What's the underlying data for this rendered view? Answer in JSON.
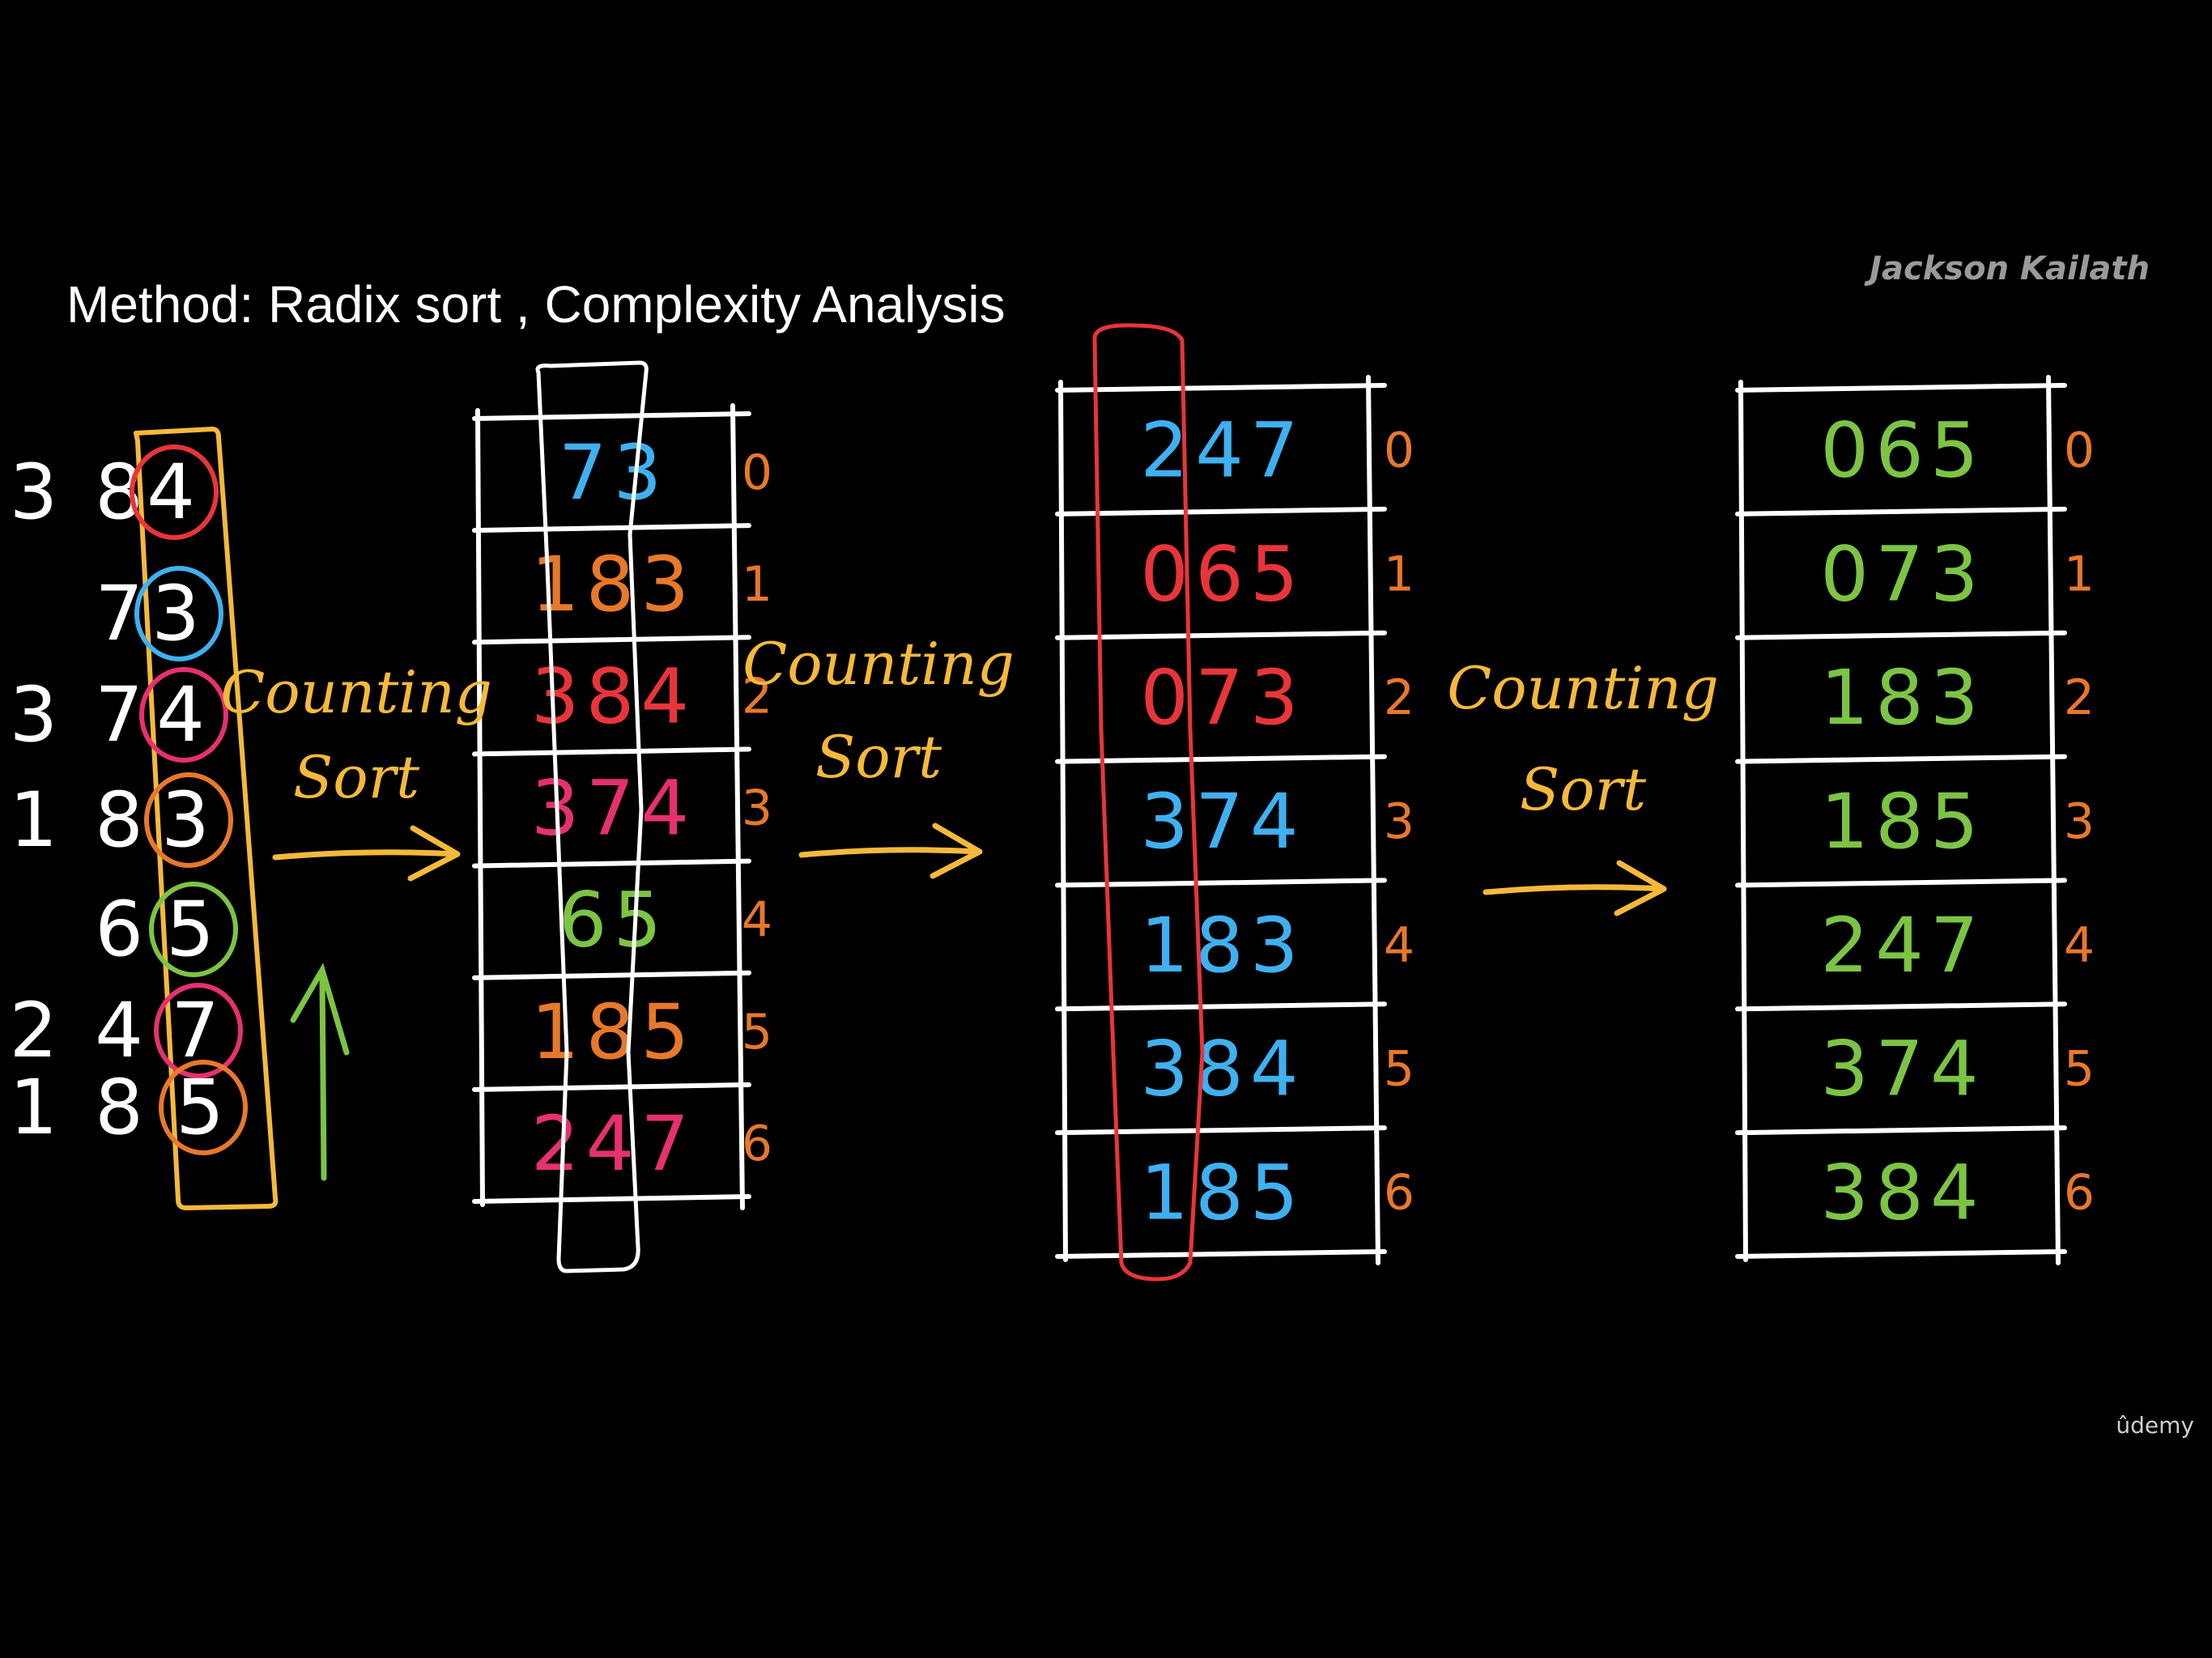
{
  "title": "Method: Radix sort , Complexity Analysis",
  "author": "Jackson Kailath",
  "brand": "ûdemy",
  "colors": {
    "background": "#000000",
    "white": "#ffffff",
    "yellow": "#f5b93a",
    "orange": "#e8782a",
    "red": "#e8353a",
    "magenta": "#e6306f",
    "blue": "#3fb0f0",
    "green": "#7cc444",
    "gray": "#9a9a9a"
  },
  "input": {
    "numbers": [
      {
        "lead": "3 8",
        "digit": "4",
        "circle": "red"
      },
      {
        "lead": "7",
        "digit": "3",
        "circle": "blue"
      },
      {
        "lead": "3 7",
        "digit": "4",
        "circle": "magenta"
      },
      {
        "lead": "1 8",
        "digit": "3",
        "circle": "orange"
      },
      {
        "lead": "6",
        "digit": "5",
        "circle": "green"
      },
      {
        "lead": "2 4",
        "digit": "7",
        "circle": "magenta"
      },
      {
        "lead": "1 8",
        "digit": "5",
        "circle": "orange"
      }
    ]
  },
  "arrows": [
    {
      "label_1": "Counting",
      "label_2": "Sort"
    },
    {
      "label_1": "Counting",
      "label_2": "Sort"
    },
    {
      "label_1": "Counting",
      "label_2": "Sort"
    }
  ],
  "passes": [
    {
      "rows": [
        {
          "value": "73",
          "color": "blue"
        },
        {
          "value": "183",
          "color": "orange"
        },
        {
          "value": "384",
          "color": "red"
        },
        {
          "value": "374",
          "color": "magenta"
        },
        {
          "value": "65",
          "color": "green"
        },
        {
          "value": "185",
          "color": "orange"
        },
        {
          "value": "247",
          "color": "magenta"
        }
      ]
    },
    {
      "rows": [
        {
          "value": "247",
          "color": "blue"
        },
        {
          "value": "065",
          "color": "red"
        },
        {
          "value": "073",
          "color": "red"
        },
        {
          "value": "374",
          "color": "blue"
        },
        {
          "value": "183",
          "color": "blue"
        },
        {
          "value": "384",
          "color": "blue"
        },
        {
          "value": "185",
          "color": "blue"
        }
      ]
    },
    {
      "rows": [
        {
          "value": "065",
          "color": "green"
        },
        {
          "value": "073",
          "color": "green"
        },
        {
          "value": "183",
          "color": "green"
        },
        {
          "value": "185",
          "color": "green"
        },
        {
          "value": "247",
          "color": "green"
        },
        {
          "value": "374",
          "color": "green"
        },
        {
          "value": "384",
          "color": "green"
        }
      ]
    }
  ],
  "indices": [
    "0",
    "1",
    "2",
    "3",
    "4",
    "5",
    "6"
  ]
}
